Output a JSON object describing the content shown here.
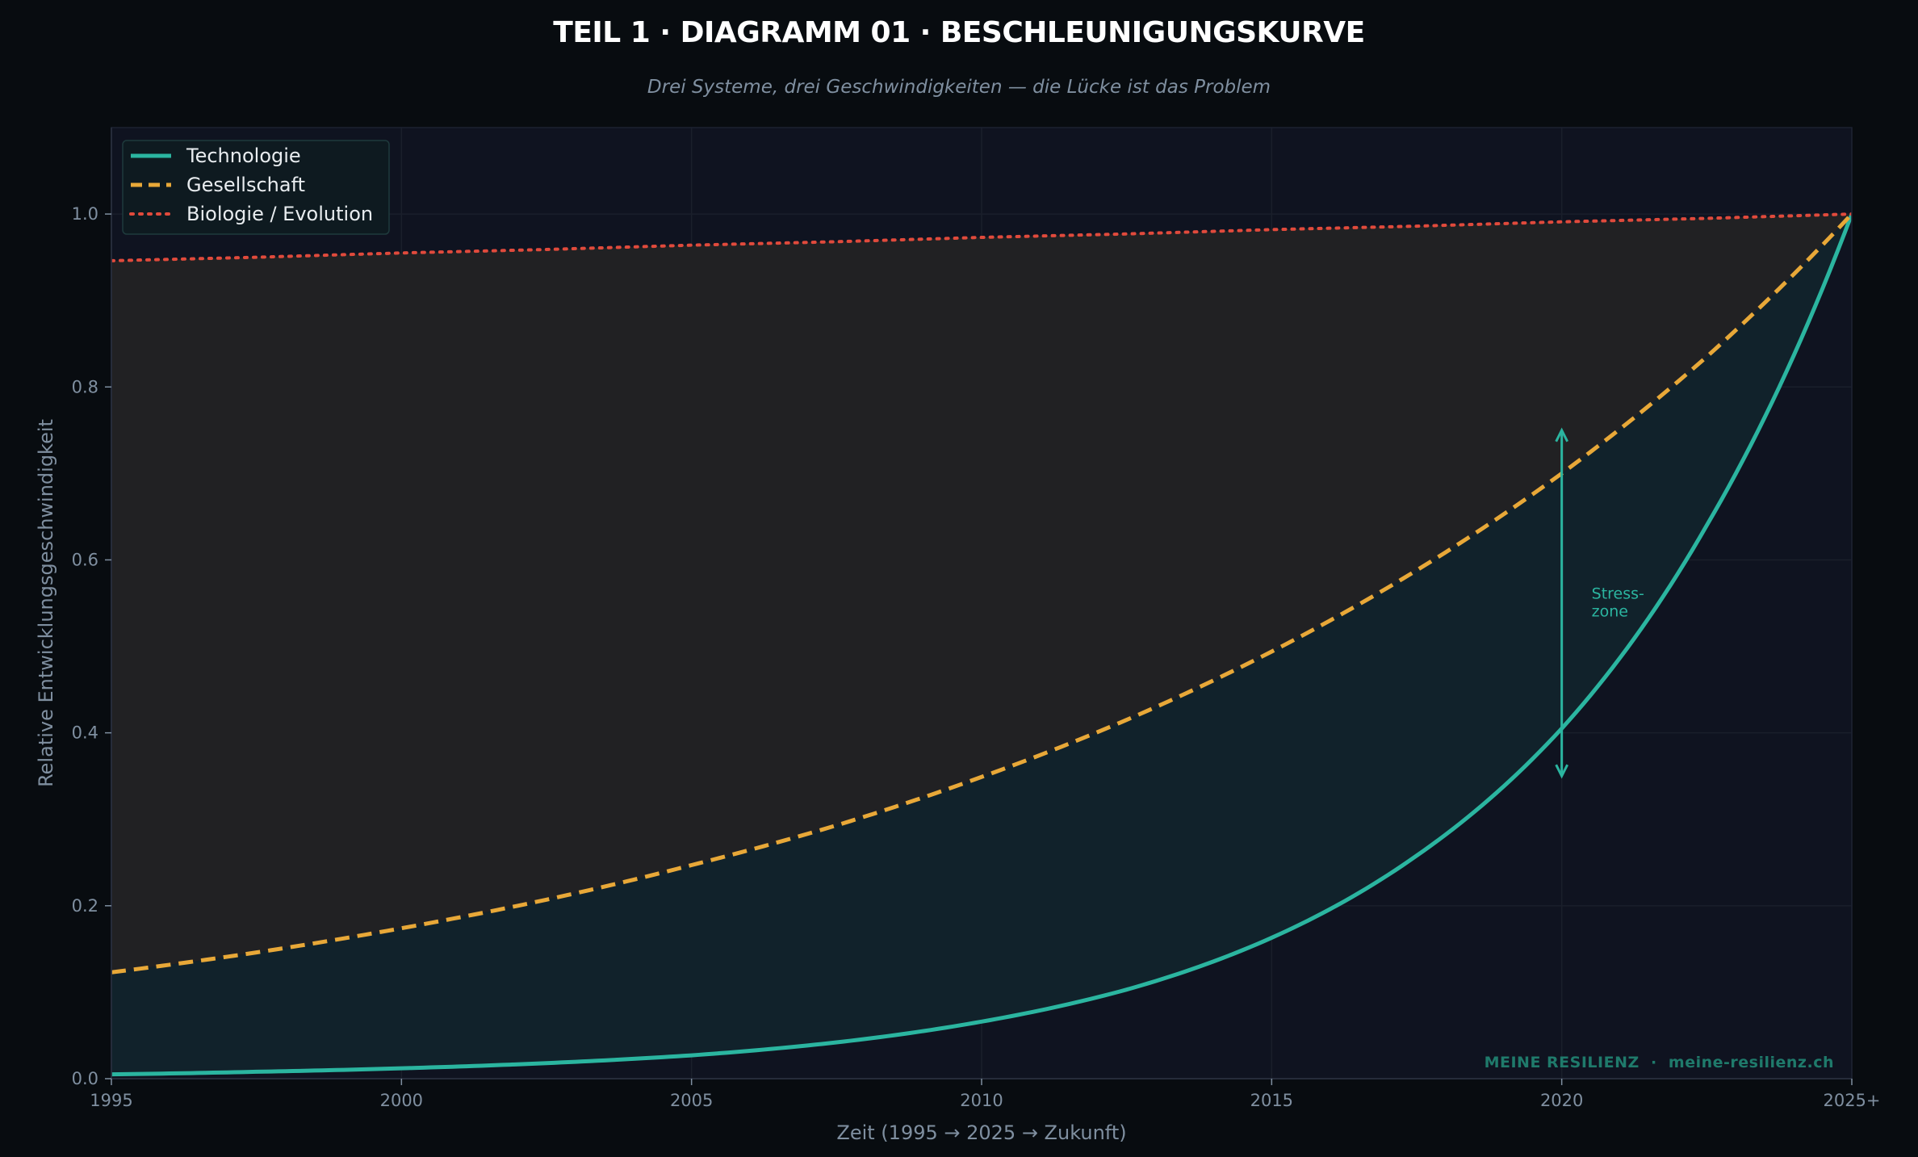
{
  "chart_data": {
    "type": "line",
    "title": "TEIL 1 · DIAGRAMM 01  ·  BESCHLEUNIGUNGSKURVE",
    "subtitle": "Drei Systeme, drei Geschwindigkeiten — die Lücke ist das Problem",
    "xlabel": "Zeit (1995 → 2025 → Zukunft)",
    "ylabel": "Relative Entwicklungsgeschwindigkeit",
    "xlim": [
      1995,
      2025
    ],
    "ylim": [
      0,
      1.1
    ],
    "xticks": [
      1995,
      2000,
      2005,
      2010,
      2015,
      2020,
      2025
    ],
    "xtick_labels": [
      "1995",
      "2000",
      "2005",
      "2010",
      "2015",
      "2020",
      "2025+"
    ],
    "yticks": [
      0.0,
      0.2,
      0.4,
      0.6,
      0.8,
      1.0
    ],
    "ytick_labels": [
      "0.0",
      "0.2",
      "0.4",
      "0.6",
      "0.8",
      "1.0"
    ],
    "grid": true,
    "legend_position": "top-left",
    "x": [
      1995,
      1997.5,
      2000,
      2002.5,
      2005,
      2007.5,
      2010,
      2012.5,
      2015,
      2017.5,
      2020,
      2022.5,
      2025
    ],
    "series": [
      {
        "name": "Technologie",
        "style": "solid",
        "color": "#2bb5a0",
        "values": [
          0.005,
          0.008,
          0.012,
          0.018,
          0.027,
          0.042,
          0.066,
          0.103,
          0.163,
          0.258,
          0.405,
          0.64,
          1.0
        ]
      },
      {
        "name": "Gesellschaft",
        "style": "dashed",
        "color": "#e8a838",
        "values": [
          0.123,
          0.146,
          0.174,
          0.207,
          0.247,
          0.293,
          0.349,
          0.415,
          0.494,
          0.588,
          0.7,
          0.835,
          1.0
        ]
      },
      {
        "name": "Biologie / Evolution",
        "style": "dotted",
        "color": "#e04a3c",
        "values": [
          0.946,
          0.95,
          0.955,
          0.959,
          0.964,
          0.968,
          0.973,
          0.977,
          0.982,
          0.986,
          0.991,
          0.995,
          1.0
        ]
      }
    ],
    "annotations": [
      {
        "kind": "double-arrow",
        "x": 2020,
        "y_from": 0.35,
        "y_to": 0.75,
        "text_line1": "Stress-",
        "text_line2": "zone",
        "color": "#2bb5a0"
      }
    ],
    "watermark": "MEINE RESILIENZ  ·  meine-resilienz.ch",
    "colors": {
      "page_background": "#080c10",
      "plot_background": "#0f1320",
      "gap_fill_upper": "#212123",
      "gap_fill_lower": "#11222b",
      "text_muted": "#7f8fa0",
      "grid": "#1a1f2b",
      "watermark": "#1f7a6b"
    }
  }
}
